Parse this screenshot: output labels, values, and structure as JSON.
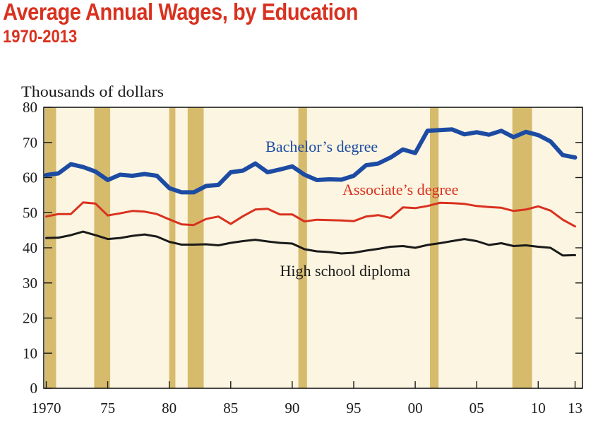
{
  "header": {
    "title": "Average Annual Wages, by Education",
    "subtitle": "1970-2013"
  },
  "colors": {
    "title": "#d9311f",
    "plot_background": "#fcf5e1",
    "recession_band": "#d6bb6c",
    "bachelors": "#1c4ba3",
    "associates": "#d9311f",
    "high_school": "#1a1a1a"
  },
  "chart_data": {
    "type": "line",
    "ylabel": "Thousands of dollars",
    "ylim": [
      0,
      80
    ],
    "xlim": [
      1969.8,
      2013.6
    ],
    "yticks": [
      0,
      10,
      20,
      30,
      40,
      50,
      60,
      70,
      80
    ],
    "xticks": [
      {
        "value": 1970,
        "label": "1970"
      },
      {
        "value": 1975,
        "label": "75"
      },
      {
        "value": 1980,
        "label": "80"
      },
      {
        "value": 1985,
        "label": "85"
      },
      {
        "value": 1990,
        "label": "90"
      },
      {
        "value": 1995,
        "label": "95"
      },
      {
        "value": 2000,
        "label": "00"
      },
      {
        "value": 2005,
        "label": "05"
      },
      {
        "value": 2010,
        "label": "10"
      },
      {
        "value": 2013,
        "label": "13"
      }
    ],
    "recessions": [
      [
        1969.9,
        1970.8
      ],
      [
        1973.9,
        1975.2
      ],
      [
        1980.0,
        1980.5
      ],
      [
        1981.5,
        1982.8
      ],
      [
        1990.5,
        1991.2
      ],
      [
        2001.2,
        2001.9
      ],
      [
        2007.9,
        2009.5
      ]
    ],
    "x": [
      1970,
      1971,
      1972,
      1973,
      1974,
      1975,
      1976,
      1977,
      1978,
      1979,
      1980,
      1981,
      1982,
      1983,
      1984,
      1985,
      1986,
      1987,
      1988,
      1989,
      1990,
      1991,
      1992,
      1993,
      1994,
      1995,
      1996,
      1997,
      1998,
      1999,
      2000,
      2001,
      2002,
      2003,
      2004,
      2005,
      2006,
      2007,
      2008,
      2009,
      2010,
      2011,
      2012,
      2013
    ],
    "series": [
      {
        "name": "Bachelor’s degree",
        "color_key": "bachelors",
        "values": [
          60.7,
          61.2,
          63.8,
          63.0,
          61.7,
          59.3,
          60.8,
          60.5,
          61.0,
          60.5,
          57.0,
          55.8,
          55.8,
          57.6,
          57.9,
          61.5,
          62.0,
          64.0,
          61.5,
          62.3,
          63.2,
          60.8,
          59.3,
          59.5,
          59.4,
          60.5,
          63.5,
          64.0,
          65.7,
          68.0,
          67.0,
          73.3,
          73.5,
          73.7,
          72.3,
          72.9,
          72.2,
          73.3,
          71.5,
          73.0,
          72.1,
          70.3,
          66.4,
          65.7
        ]
      },
      {
        "name": "Associate’s degree",
        "color_key": "associates",
        "values": [
          48.9,
          49.6,
          49.6,
          52.9,
          52.6,
          49.2,
          49.8,
          50.5,
          50.3,
          49.6,
          48.1,
          46.7,
          46.5,
          48.2,
          48.9,
          46.8,
          49.0,
          50.9,
          51.1,
          49.5,
          49.5,
          47.5,
          48.0,
          47.9,
          47.8,
          47.6,
          48.9,
          49.3,
          48.5,
          51.5,
          51.3,
          51.9,
          52.8,
          52.7,
          52.5,
          51.9,
          51.6,
          51.4,
          50.5,
          50.9,
          51.8,
          50.6,
          48.0,
          46.1
        ]
      },
      {
        "name": "High school diploma",
        "color_key": "high_school",
        "values": [
          42.8,
          42.9,
          43.6,
          44.6,
          43.6,
          42.5,
          42.8,
          43.4,
          43.8,
          43.2,
          41.7,
          40.9,
          40.9,
          41.0,
          40.7,
          41.4,
          41.9,
          42.3,
          41.8,
          41.4,
          41.2,
          39.6,
          39.0,
          38.8,
          38.4,
          38.6,
          39.2,
          39.7,
          40.3,
          40.5,
          40.0,
          40.8,
          41.3,
          41.9,
          42.5,
          41.9,
          40.8,
          41.3,
          40.5,
          40.7,
          40.3,
          40.0,
          37.8,
          37.9
        ]
      }
    ],
    "annotations": [
      {
        "series": 0,
        "label": "Bachelor’s degree",
        "x": 1992.4,
        "y": 67.3
      },
      {
        "series": 1,
        "label": "Associate’s degree",
        "x": 1998.8,
        "y": 55.1
      },
      {
        "series": 2,
        "label": "High school diploma",
        "x": 1994.3,
        "y": 32.0
      }
    ],
    "grid": false,
    "legend": "inline labels"
  }
}
